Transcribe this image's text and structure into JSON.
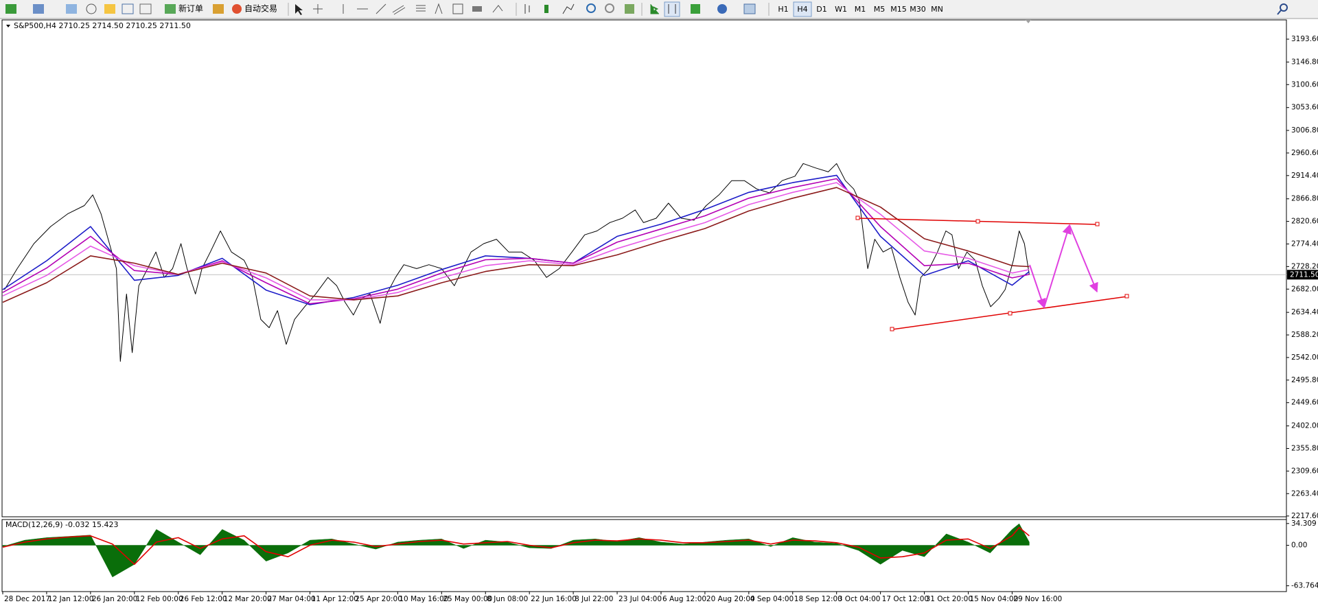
{
  "toolbar": {
    "new_order": "新订单",
    "auto_trading": "自动交易",
    "timeframes": [
      "H1",
      "H4",
      "D1",
      "W1",
      "M1",
      "M5",
      "M15",
      "M30",
      "MN"
    ]
  },
  "chart_data": [
    {
      "type": "line",
      "title": "S&P500,H4  2710.25 2714.50 2710.25 2711.50",
      "categories": [
        "28 Dec 2017",
        "12 Jan 12:00",
        "26 Jan 20:00",
        "12 Feb 00:00",
        "26 Feb 12:00",
        "12 Mar 20:00",
        "27 Mar 04:00",
        "11 Apr 12:00",
        "25 Apr 20:00",
        "10 May 16:00",
        "25 May 00:00",
        "8 Jun 08:00",
        "22 Jun 16:00",
        "8 Jul 22:00",
        "23 Jul 04:00",
        "6 Aug 12:00",
        "20 Aug 20:00",
        "4 Sep 04:00",
        "18 Sep 12:00",
        "3 Oct 04:00",
        "17 Oct 12:00",
        "31 Oct 20:00",
        "15 Nov 04:00",
        "29 Nov 16:00"
      ],
      "xlim": [
        0,
        29.25
      ],
      "ylim": [
        2216,
        3233
      ],
      "yticks": [
        {
          "value": 3193.6,
          "label": "3193.60"
        },
        {
          "value": 3146.8,
          "label": "3146.80"
        },
        {
          "value": 3100.6,
          "label": "3100.60"
        },
        {
          "value": 3053.6,
          "label": "3053.60"
        },
        {
          "value": 3006.8,
          "label": "3006.80"
        },
        {
          "value": 2960.6,
          "label": "2960.60"
        },
        {
          "value": 2914.4,
          "label": "2914.40"
        },
        {
          "value": 2866.8,
          "label": "2866.80"
        },
        {
          "value": 2820.6,
          "label": "2820.60"
        },
        {
          "value": 2774.4,
          "label": "2774.40"
        },
        {
          "value": 2728.2,
          "label": "2728.20"
        },
        {
          "value": 2682,
          "label": "2682.00"
        },
        {
          "value": 2634.4,
          "label": "2634.40"
        },
        {
          "value": 2588.2,
          "label": "2588.20"
        },
        {
          "value": 2542,
          "label": "2542.00"
        },
        {
          "value": 2495.8,
          "label": "2495.80"
        },
        {
          "value": 2449.6,
          "label": "2449.60"
        },
        {
          "value": 2402,
          "label": "2402.00"
        },
        {
          "value": 2355.8,
          "label": "2355.80"
        },
        {
          "value": 2309.6,
          "label": "2309.60"
        },
        {
          "value": 2263.4,
          "label": "2263.40"
        },
        {
          "value": 2217.6,
          "label": "2217.60"
        }
      ],
      "last_price": {
        "value": 2711.5,
        "label": "2711.50"
      },
      "series": [
        {
          "color": "#000000",
          "x": [
            0.04,
            0.33,
            0.71,
            1.09,
            1.48,
            1.86,
            2.05,
            2.24,
            2.43,
            2.59,
            2.68,
            2.82,
            2.95,
            3.1,
            3.3,
            3.49,
            3.68,
            3.87,
            4.06,
            4.2,
            4.39,
            4.54,
            4.73,
            4.96,
            5.21,
            5.5,
            5.69,
            5.88,
            6.07,
            6.26,
            6.46,
            6.65,
            6.88,
            7.13,
            7.41,
            7.61,
            7.8,
            7.99,
            8.18,
            8.37,
            8.6,
            8.75,
            8.95,
            9.14,
            9.43,
            9.71,
            10.0,
            10.29,
            10.48,
            10.67,
            10.96,
            11.25,
            11.53,
            11.82,
            12.11,
            12.39,
            12.68,
            12.97,
            13.26,
            13.54,
            13.83,
            14.12,
            14.41,
            14.6,
            14.89,
            15.17,
            15.46,
            15.75,
            16.03,
            16.32,
            16.61,
            16.9,
            17.18,
            17.47,
            17.76,
            18.05,
            18.24,
            18.52,
            18.81,
            19.0,
            19.2,
            19.39,
            19.52,
            19.64,
            19.71,
            19.87,
            20.06,
            20.25,
            20.44,
            20.63,
            20.79,
            20.92,
            21.11,
            21.3,
            21.49,
            21.63,
            21.78,
            21.97,
            22.16,
            22.32,
            22.51,
            22.7,
            22.84,
            23.03,
            23.16,
            23.28,
            23.39
          ],
          "values": [
            2681,
            2724,
            2775,
            2810,
            2836,
            2853,
            2875,
            2836,
            2775,
            2724,
            2534,
            2672,
            2552,
            2689,
            2724,
            2758,
            2706,
            2724,
            2775,
            2724,
            2672,
            2724,
            2758,
            2801,
            2758,
            2741,
            2706,
            2620,
            2603,
            2638,
            2569,
            2620,
            2646,
            2672,
            2706,
            2689,
            2655,
            2629,
            2663,
            2672,
            2612,
            2672,
            2706,
            2732,
            2724,
            2732,
            2724,
            2689,
            2724,
            2758,
            2775,
            2784,
            2758,
            2758,
            2741,
            2706,
            2724,
            2758,
            2793,
            2801,
            2818,
            2827,
            2844,
            2818,
            2827,
            2858,
            2827,
            2823,
            2853,
            2875,
            2904,
            2904,
            2887,
            2879,
            2904,
            2913,
            2939,
            2930,
            2922,
            2939,
            2904,
            2887,
            2862,
            2775,
            2724,
            2784,
            2758,
            2767,
            2706,
            2655,
            2629,
            2706,
            2724,
            2758,
            2801,
            2793,
            2724,
            2758,
            2741,
            2689,
            2646,
            2663,
            2681,
            2741,
            2801,
            2775,
            2711.5
          ]
        },
        {
          "color": "#1c1cc8",
          "x": [
            0,
            1,
            2,
            3,
            4,
            5,
            6,
            7,
            8,
            9,
            10,
            11,
            12,
            13,
            14,
            15,
            16,
            17,
            18,
            19,
            20,
            21,
            22,
            23,
            23.39
          ],
          "values": [
            2681,
            2740,
            2810,
            2700,
            2710,
            2745,
            2680,
            2650,
            2665,
            2690,
            2722,
            2750,
            2745,
            2735,
            2790,
            2815,
            2845,
            2880,
            2900,
            2915,
            2790,
            2710,
            2740,
            2690,
            2718
          ]
        },
        {
          "color": "#b400b4",
          "x": [
            0,
            1,
            2,
            3,
            4,
            5,
            6,
            7,
            8,
            9,
            10,
            11,
            12,
            13,
            14,
            15,
            16,
            17,
            18,
            19,
            20,
            21,
            22,
            23,
            23.39
          ],
          "values": [
            2675,
            2725,
            2790,
            2720,
            2712,
            2740,
            2695,
            2652,
            2662,
            2682,
            2715,
            2742,
            2745,
            2735,
            2778,
            2805,
            2832,
            2868,
            2890,
            2908,
            2810,
            2730,
            2735,
            2705,
            2712
          ]
        },
        {
          "color": "#e65ae6",
          "x": [
            0,
            1,
            2,
            3,
            4,
            5,
            6,
            7,
            8,
            9,
            10,
            11,
            12,
            13,
            14,
            15,
            16,
            17,
            18,
            19,
            20,
            21,
            22,
            23,
            23.39
          ],
          "values": [
            2668,
            2710,
            2770,
            2730,
            2712,
            2738,
            2705,
            2660,
            2660,
            2675,
            2705,
            2730,
            2740,
            2732,
            2765,
            2792,
            2818,
            2855,
            2880,
            2900,
            2835,
            2760,
            2745,
            2715,
            2722
          ]
        },
        {
          "color": "#8b1a1a",
          "x": [
            0,
            1,
            2,
            3,
            4,
            5,
            6,
            7,
            8,
            9,
            10,
            11,
            12,
            13,
            14,
            15,
            16,
            17,
            18,
            19,
            20,
            21,
            22,
            23,
            23.39
          ],
          "values": [
            2655,
            2695,
            2750,
            2735,
            2712,
            2735,
            2715,
            2668,
            2660,
            2668,
            2695,
            2718,
            2732,
            2730,
            2752,
            2780,
            2806,
            2842,
            2868,
            2890,
            2850,
            2785,
            2760,
            2730,
            2728
          ]
        }
      ]
    },
    {
      "type": "area",
      "title": "MACD(12,26,9) -0.032 15.423",
      "xlim": [
        0,
        29.25
      ],
      "ylim": [
        -72.9,
        39.5
      ],
      "yticks": [
        34.309,
        {
          "value": 0,
          "label": "0.00"
        },
        -63.764
      ],
      "series": [
        {
          "type": "area",
          "color": "#0a6e0a",
          "x": [
            0,
            0.5,
            1,
            1.5,
            2,
            2.5,
            3,
            3.5,
            4,
            4.5,
            5,
            5.5,
            6,
            6.5,
            7,
            7.5,
            8,
            8.5,
            9,
            9.5,
            10,
            10.5,
            11,
            11.5,
            12,
            12.5,
            13,
            13.5,
            14,
            14.5,
            15,
            15.5,
            16,
            16.5,
            17,
            17.5,
            18,
            18.5,
            19,
            19.5,
            20,
            20.5,
            21,
            21.5,
            22,
            22.5,
            23,
            23.16,
            23.39
          ],
          "values": [
            -2,
            8,
            12,
            14,
            16,
            -50,
            -30,
            25,
            5,
            -15,
            25,
            8,
            -25,
            -12,
            8,
            10,
            2,
            -6,
            5,
            8,
            10,
            -5,
            8,
            5,
            -4,
            -5,
            8,
            10,
            6,
            12,
            5,
            2,
            5,
            8,
            10,
            -2,
            12,
            5,
            3,
            -8,
            -30,
            -8,
            -18,
            18,
            5,
            -12,
            25,
            34,
            5
          ]
        },
        {
          "type": "line",
          "color": "#e00000",
          "x": [
            0,
            0.5,
            1,
            1.5,
            2,
            2.5,
            3,
            3.5,
            4,
            4.5,
            5,
            5.5,
            6,
            6.5,
            7,
            7.5,
            8,
            8.5,
            9,
            9.5,
            10,
            10.5,
            11,
            11.5,
            12,
            12.5,
            13,
            13.5,
            14,
            14.5,
            15,
            15.5,
            16,
            16.5,
            17,
            17.5,
            18,
            18.5,
            19,
            19.5,
            20,
            20.5,
            21,
            21.5,
            22,
            22.5,
            23,
            23.16,
            23.39
          ],
          "values": [
            -3,
            5,
            10,
            13,
            15,
            2,
            -30,
            5,
            12,
            -5,
            10,
            15,
            -10,
            -18,
            0,
            8,
            5,
            -2,
            2,
            6,
            8,
            2,
            4,
            6,
            0,
            -4,
            4,
            8,
            7,
            10,
            8,
            4,
            4,
            6,
            8,
            2,
            8,
            7,
            4,
            -3,
            -20,
            -18,
            -12,
            8,
            10,
            -5,
            15,
            28,
            15
          ]
        }
      ]
    }
  ]
}
